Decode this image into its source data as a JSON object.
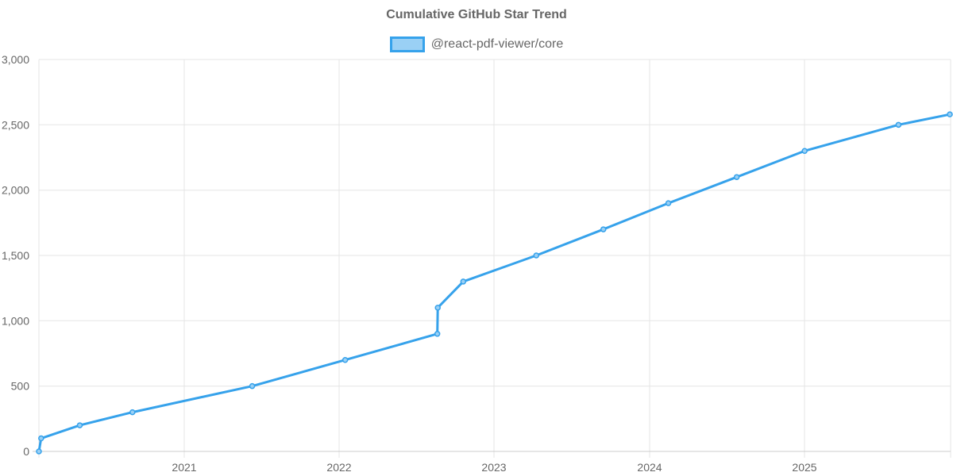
{
  "chart_data": {
    "type": "line",
    "title": "Cumulative GitHub Star Trend",
    "xlabel": "",
    "ylabel": "",
    "ylim": [
      0,
      3000
    ],
    "yticks": [
      "0",
      "500",
      "1,000",
      "1,500",
      "2,000",
      "2,500",
      "3,000"
    ],
    "xticks": [
      "2021",
      "2022",
      "2023",
      "2024",
      "2025"
    ],
    "grid": true,
    "legend_position": "top",
    "series": [
      {
        "name": "@react-pdf-viewer/core",
        "color": "#36a2eb",
        "fill": "#9ad0f5",
        "points": [
          {
            "x": "2020-01-07",
            "y": 0
          },
          {
            "x": "2020-01-30",
            "y": 100
          },
          {
            "x": "2020-04-30",
            "y": 200
          },
          {
            "x": "2020-09-01",
            "y": 300
          },
          {
            "x": "2021-06-10",
            "y": 500
          },
          {
            "x": "2022-01-15",
            "y": 700
          },
          {
            "x": "2022-08-20",
            "y": 900
          },
          {
            "x": "2022-08-21",
            "y": 1100
          },
          {
            "x": "2022-10-20",
            "y": 1300
          },
          {
            "x": "2023-04-10",
            "y": 1500
          },
          {
            "x": "2023-09-15",
            "y": 1700
          },
          {
            "x": "2024-02-15",
            "y": 1900
          },
          {
            "x": "2024-07-25",
            "y": 2100
          },
          {
            "x": "2025-01-01",
            "y": 2300
          },
          {
            "x": "2025-08-10",
            "y": 2500
          },
          {
            "x": "2025-12-10",
            "y": 2580
          }
        ]
      }
    ]
  },
  "title": "Cumulative GitHub Star Trend",
  "legend": {
    "label": "@react-pdf-viewer/core"
  },
  "yticks": [
    "3,000",
    "2,500",
    "2,000",
    "1,500",
    "1,000",
    "500",
    "0"
  ],
  "xticks": [
    "2021",
    "2022",
    "2023",
    "2024",
    "2025"
  ]
}
